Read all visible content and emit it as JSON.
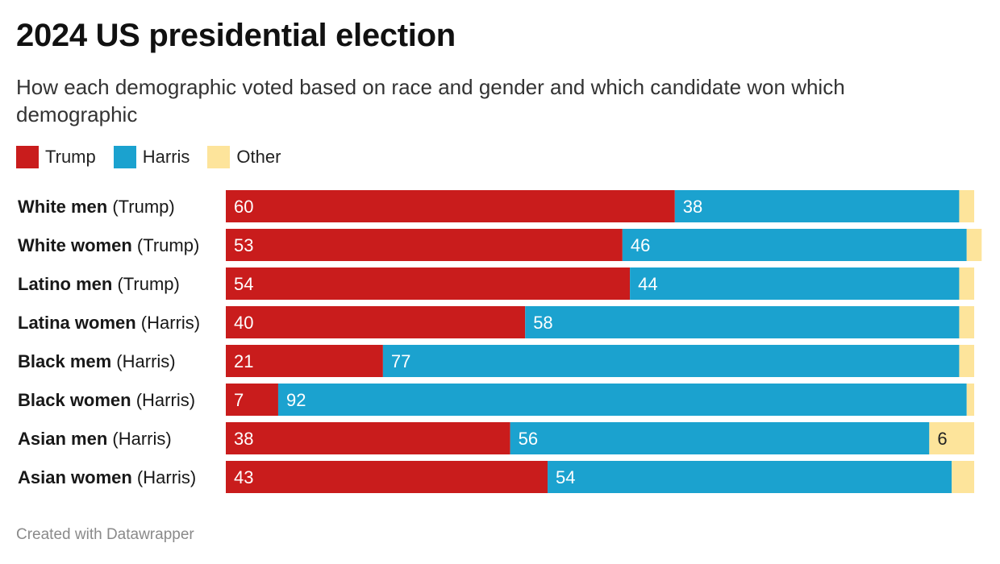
{
  "title": "2024 US presidential election",
  "subtitle": "How each demographic voted based on race and gender and which candidate won which demographic",
  "legend": [
    {
      "label": "Trump",
      "color": "#c91c1c"
    },
    {
      "label": "Harris",
      "color": "#1ba2cf"
    },
    {
      "label": "Other",
      "color": "#fde49b"
    }
  ],
  "footer": "Created with Datawrapper",
  "chart_data": {
    "type": "bar",
    "orientation": "horizontal",
    "stacked": true,
    "categories": [
      {
        "group": "White men",
        "winner": "(Trump)"
      },
      {
        "group": "White women",
        "winner": "(Trump)"
      },
      {
        "group": "Latino men",
        "winner": "(Trump)"
      },
      {
        "group": "Latina women",
        "winner": "(Harris)"
      },
      {
        "group": "Black mem",
        "winner": "(Harris)"
      },
      {
        "group": "Black women",
        "winner": "(Harris)"
      },
      {
        "group": "Asian men",
        "winner": "(Harris)"
      },
      {
        "group": "Asian women",
        "winner": "(Harris)"
      }
    ],
    "series": [
      {
        "name": "Trump",
        "color": "#c91c1c",
        "values": [
          60,
          53,
          54,
          40,
          21,
          7,
          38,
          43
        ]
      },
      {
        "name": "Harris",
        "color": "#1ba2cf",
        "values": [
          38,
          46,
          44,
          58,
          77,
          92,
          56,
          54
        ]
      },
      {
        "name": "Other",
        "color": "#fde49b",
        "values": [
          2,
          2,
          2,
          2,
          2,
          1,
          6,
          3
        ]
      }
    ],
    "data_labels_shown": [
      [
        true,
        true,
        true,
        true,
        true,
        true,
        true,
        true
      ],
      [
        true,
        true,
        true,
        true,
        true,
        true,
        true,
        true
      ],
      [
        false,
        false,
        false,
        false,
        false,
        false,
        true,
        false
      ]
    ],
    "xlim": [
      0,
      100
    ],
    "grid": false,
    "legend_position": "top-left"
  }
}
